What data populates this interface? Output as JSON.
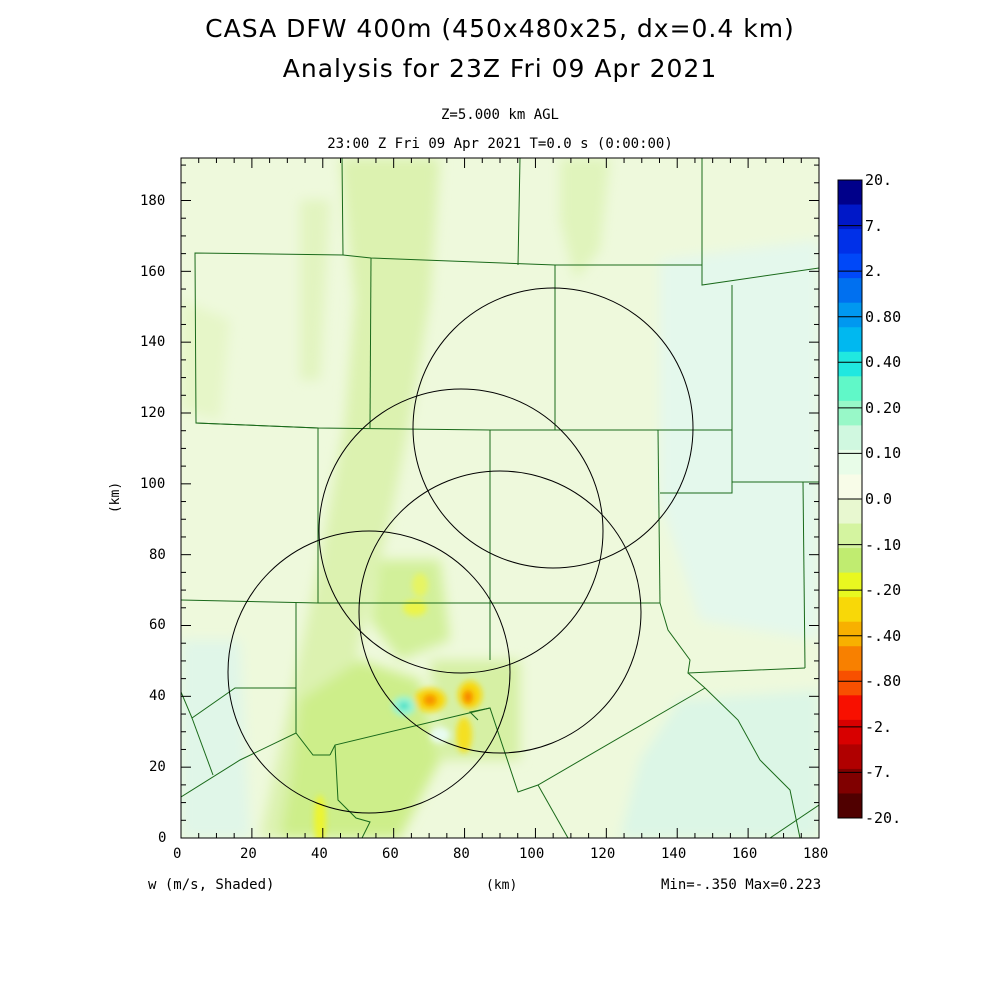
{
  "header": {
    "title_line1": "CASA DFW 400m (450x480x25, dx=0.4 km)",
    "title_line2": "Analysis for 23Z Fri 09 Apr 2021",
    "level": "Z=5.000 km AGL",
    "time": "23:00 Z Fri 09 Apr 2021   T=0.0 s (0:00:00)"
  },
  "axes": {
    "x_ticks": [
      "0",
      "20",
      "40",
      "60",
      "80",
      "100",
      "120",
      "140",
      "160",
      "180"
    ],
    "y_ticks": [
      "0",
      "20",
      "40",
      "60",
      "80",
      "100",
      "120",
      "140",
      "160",
      "180"
    ],
    "x_unit": "(km)",
    "y_unit": "(km)",
    "xlim": [
      0,
      180
    ],
    "ylim": [
      0,
      192
    ]
  },
  "footer": {
    "field": "w (m/s, Shaded)",
    "stats": "Min=-.350 Max=0.223"
  },
  "colorbar": {
    "labels": [
      "20.",
      "7.",
      "2.",
      "0.80",
      "0.40",
      "0.20",
      "0.10",
      "0.0",
      "-.10",
      "-.20",
      "-.40",
      "-.80",
      "-2.",
      "-7.",
      "-20."
    ],
    "colors": [
      "#00008a",
      "#0018c8",
      "#0030e8",
      "#0048f8",
      "#0070f0",
      "#0098f0",
      "#00b8f0",
      "#20e8e0",
      "#60f8c8",
      "#98f8c8",
      "#d0f8e0",
      "#e8fce8",
      "#f8fce8",
      "#e8f8d0",
      "#d4f4a0",
      "#c0ec70",
      "#e8f820",
      "#f8d808",
      "#f8b000",
      "#f88000",
      "#f85000",
      "#f81000",
      "#d80000",
      "#b00000",
      "#800000",
      "#500000"
    ]
  },
  "chart_data": {
    "type": "map",
    "field": "w (m/s)",
    "radar_rings": [
      {
        "cx": 107,
        "cy": 116,
        "r": 39
      },
      {
        "cx": 79,
        "cy": 87,
        "r": 40
      },
      {
        "cx": 54,
        "cy": 47,
        "r": 40
      },
      {
        "cx": 90,
        "cy": 61,
        "r": 40
      }
    ],
    "features": [
      {
        "kind": "updraft-max",
        "x": 64,
        "y": 37,
        "value": 0.223
      },
      {
        "kind": "downdraft",
        "x": 71,
        "y": 39,
        "value": -0.3
      },
      {
        "kind": "downdraft",
        "x": 82,
        "y": 39,
        "value": -0.35
      },
      {
        "kind": "downdraft",
        "x": 80,
        "y": 29,
        "value": -0.25
      },
      {
        "kind": "downdraft",
        "x": 66,
        "y": 65,
        "value": -0.2
      }
    ]
  }
}
